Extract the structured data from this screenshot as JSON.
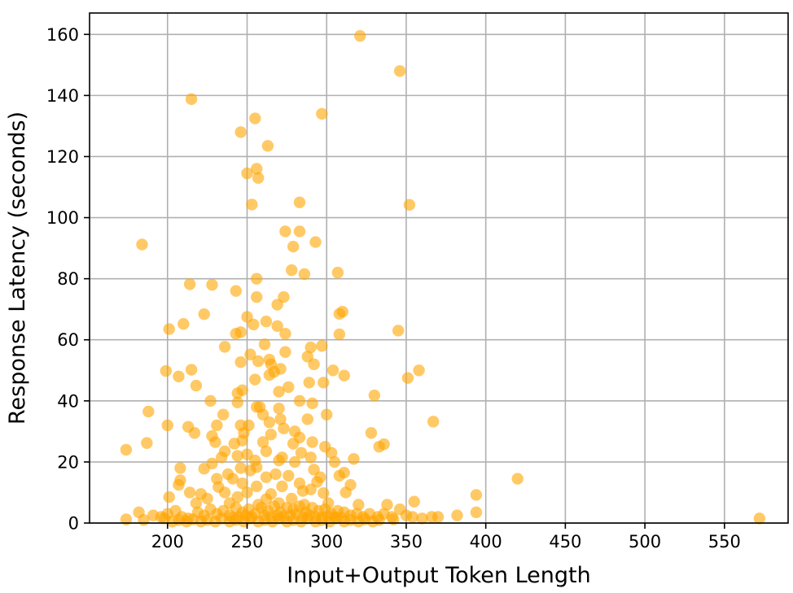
{
  "chart_data": {
    "type": "scatter",
    "title": "",
    "xlabel": "Input+Output Token Length",
    "ylabel": "Response Latency (seconds)",
    "xlim": [
      151,
      590
    ],
    "ylim": [
      0,
      167
    ],
    "xticks": [
      200,
      250,
      300,
      350,
      400,
      450,
      500,
      550
    ],
    "yticks": [
      0,
      20,
      40,
      60,
      80,
      100,
      120,
      140,
      160
    ],
    "grid": true,
    "marker_color": "#FFA500",
    "marker_alpha": 0.6,
    "points": [
      [
        321,
        159.5
      ],
      [
        346,
        148
      ],
      [
        215,
        138.8
      ],
      [
        297,
        134
      ],
      [
        255,
        132.5
      ],
      [
        246,
        128
      ],
      [
        263,
        123.5
      ],
      [
        256,
        116
      ],
      [
        250,
        114.5
      ],
      [
        257,
        113
      ],
      [
        283,
        105
      ],
      [
        253,
        104.3
      ],
      [
        352,
        104.2
      ],
      [
        184,
        91.2
      ],
      [
        274,
        95.5
      ],
      [
        283,
        95.5
      ],
      [
        293,
        92
      ],
      [
        279,
        90.5
      ],
      [
        278,
        82.8
      ],
      [
        286,
        81.5
      ],
      [
        307,
        82
      ],
      [
        214,
        78.2
      ],
      [
        228,
        78
      ],
      [
        256,
        80
      ],
      [
        243,
        76
      ],
      [
        256,
        74
      ],
      [
        273,
        74
      ],
      [
        269,
        71.5
      ],
      [
        310,
        69.2
      ],
      [
        308,
        68.5
      ],
      [
        250,
        67.5
      ],
      [
        223,
        68.4
      ],
      [
        262,
        66
      ],
      [
        269,
        64.5
      ],
      [
        210,
        65.2
      ],
      [
        254,
        65
      ],
      [
        201,
        63.5
      ],
      [
        243,
        62
      ],
      [
        246,
        62.5
      ],
      [
        274,
        62
      ],
      [
        308,
        61.8
      ],
      [
        345,
        63
      ],
      [
        261,
        58.5
      ],
      [
        236,
        57.7
      ],
      [
        274,
        56
      ],
      [
        290,
        57.5
      ],
      [
        297,
        58
      ],
      [
        252,
        55.2
      ],
      [
        288,
        54.5
      ],
      [
        257,
        53
      ],
      [
        246,
        52.7
      ],
      [
        264,
        53.5
      ],
      [
        265,
        52
      ],
      [
        267,
        49.5
      ],
      [
        271,
        50.5
      ],
      [
        292,
        52
      ],
      [
        304,
        50
      ],
      [
        199,
        49.8
      ],
      [
        215,
        50.2
      ],
      [
        207,
        48
      ],
      [
        264,
        48.5
      ],
      [
        351,
        47.5
      ],
      [
        358,
        50
      ],
      [
        311,
        48.3
      ],
      [
        255,
        47
      ],
      [
        289,
        46
      ],
      [
        298,
        46
      ],
      [
        218,
        45
      ],
      [
        276,
        44.5
      ],
      [
        247,
        43.5
      ],
      [
        244,
        42.5
      ],
      [
        270,
        43
      ],
      [
        330,
        41.8
      ],
      [
        227,
        40
      ],
      [
        244,
        39.5
      ],
      [
        283,
        40
      ],
      [
        291,
        39.2
      ],
      [
        256,
        38
      ],
      [
        258,
        38
      ],
      [
        270,
        37.5
      ],
      [
        300,
        35.5
      ],
      [
        188,
        36.5
      ],
      [
        235,
        35.5
      ],
      [
        260,
        35.5
      ],
      [
        288,
        34
      ],
      [
        264,
        33
      ],
      [
        271,
        34
      ],
      [
        367,
        33.2
      ],
      [
        200,
        32
      ],
      [
        213,
        31.5
      ],
      [
        231,
        32
      ],
      [
        246,
        32
      ],
      [
        251,
        32
      ],
      [
        273,
        31
      ],
      [
        280,
        30
      ],
      [
        217,
        29.5
      ],
      [
        248,
        29.5
      ],
      [
        265,
        29
      ],
      [
        283,
        28
      ],
      [
        328,
        29.5
      ],
      [
        187,
        26.2
      ],
      [
        228,
        28.5
      ],
      [
        230,
        26.5
      ],
      [
        247,
        27
      ],
      [
        242,
        26
      ],
      [
        260,
        26.5
      ],
      [
        279,
        26
      ],
      [
        291,
        26.5
      ],
      [
        299,
        25
      ],
      [
        336,
        25.8
      ],
      [
        333,
        25
      ],
      [
        236,
        23.5
      ],
      [
        262,
        23.5
      ],
      [
        284,
        23
      ],
      [
        303,
        23
      ],
      [
        174,
        24
      ],
      [
        244,
        22
      ],
      [
        250,
        22.5
      ],
      [
        272,
        21.5
      ],
      [
        290,
        21.5
      ],
      [
        317,
        21
      ],
      [
        234,
        21.5
      ],
      [
        255,
        20.5
      ],
      [
        270,
        20.5
      ],
      [
        280,
        20
      ],
      [
        305,
        20
      ],
      [
        228,
        19.5
      ],
      [
        208,
        18
      ],
      [
        223,
        17.8
      ],
      [
        246,
        18
      ],
      [
        256,
        18.3
      ],
      [
        292,
        17.5
      ],
      [
        311,
        16.5
      ],
      [
        238,
        16
      ],
      [
        252,
        17.2
      ],
      [
        268,
        16
      ],
      [
        308,
        15.5
      ],
      [
        420,
        14.5
      ],
      [
        231,
        14.5
      ],
      [
        241,
        14.5
      ],
      [
        262,
        15
      ],
      [
        276,
        15.5
      ],
      [
        296,
        15
      ],
      [
        208,
        14
      ],
      [
        247,
        13
      ],
      [
        283,
        13
      ],
      [
        294,
        13.5
      ],
      [
        315,
        12.5
      ],
      [
        207,
        12.5
      ],
      [
        232,
        11.8
      ],
      [
        256,
        12
      ],
      [
        272,
        12
      ],
      [
        290,
        11
      ],
      [
        214,
        10
      ],
      [
        221,
        9.5
      ],
      [
        236,
        10
      ],
      [
        250,
        10
      ],
      [
        265,
        9.5
      ],
      [
        285,
        10.5
      ],
      [
        298,
        9.8
      ],
      [
        312,
        10
      ],
      [
        201,
        8.5
      ],
      [
        225,
        8
      ],
      [
        244,
        8.5
      ],
      [
        262,
        7.8
      ],
      [
        278,
        8
      ],
      [
        394,
        9.2
      ],
      [
        355,
        7
      ],
      [
        338,
        6
      ],
      [
        218,
        6.5
      ],
      [
        239,
        6.5
      ],
      [
        257,
        6
      ],
      [
        270,
        6.5
      ],
      [
        286,
        6
      ],
      [
        301,
        6.5
      ],
      [
        320,
        6
      ],
      [
        182,
        3.5
      ],
      [
        191,
        2.5
      ],
      [
        196,
        2
      ],
      [
        200,
        3
      ],
      [
        205,
        4
      ],
      [
        209,
        2
      ],
      [
        213,
        1.5
      ],
      [
        219,
        3.5
      ],
      [
        223,
        2.5
      ],
      [
        227,
        4.5
      ],
      [
        231,
        3
      ],
      [
        235,
        4
      ],
      [
        239,
        2.5
      ],
      [
        243,
        5
      ],
      [
        247,
        3.5
      ],
      [
        251,
        4.5
      ],
      [
        255,
        3
      ],
      [
        259,
        5
      ],
      [
        263,
        4
      ],
      [
        267,
        5.5
      ],
      [
        271,
        3.5
      ],
      [
        275,
        5
      ],
      [
        279,
        4.5
      ],
      [
        283,
        5.5
      ],
      [
        287,
        3.5
      ],
      [
        291,
        5
      ],
      [
        295,
        4
      ],
      [
        299,
        4.5
      ],
      [
        303,
        3
      ],
      [
        307,
        4
      ],
      [
        311,
        3.5
      ],
      [
        315,
        2.5
      ],
      [
        319,
        3
      ],
      [
        323,
        2
      ],
      [
        327,
        3
      ],
      [
        332,
        2
      ],
      [
        336,
        3
      ],
      [
        341,
        2
      ],
      [
        346,
        4.5
      ],
      [
        350,
        2.5
      ],
      [
        354,
        2
      ],
      [
        360,
        1.5
      ],
      [
        366,
        2
      ],
      [
        370,
        2
      ],
      [
        382,
        2.5
      ],
      [
        394,
        3.5
      ],
      [
        572,
        1.5
      ],
      [
        174,
        1.2
      ],
      [
        185,
        1
      ],
      [
        198,
        1.5
      ],
      [
        207,
        1
      ],
      [
        216,
        1.2
      ],
      [
        225,
        1
      ],
      [
        234,
        1.5
      ],
      [
        243,
        1
      ],
      [
        252,
        1.5
      ],
      [
        261,
        1
      ],
      [
        270,
        1.5
      ],
      [
        279,
        1
      ],
      [
        288,
        1.5
      ],
      [
        297,
        1
      ],
      [
        306,
        1.5
      ],
      [
        315,
        1
      ],
      [
        324,
        1.2
      ],
      [
        333,
        1
      ],
      [
        342,
        1.2
      ],
      [
        203,
        0.5
      ],
      [
        212,
        0.5
      ],
      [
        221,
        0.5
      ],
      [
        230,
        0.5
      ],
      [
        239,
        0.5
      ],
      [
        248,
        0.5
      ],
      [
        257,
        0.5
      ],
      [
        266,
        0.5
      ],
      [
        275,
        0.5
      ],
      [
        284,
        0.5
      ],
      [
        293,
        0.5
      ],
      [
        302,
        0.5
      ],
      [
        311,
        0.5
      ],
      [
        320,
        0.5
      ],
      [
        329,
        0.5
      ],
      [
        277,
        2.5
      ],
      [
        281,
        3
      ],
      [
        273,
        2
      ],
      [
        269,
        2.5
      ],
      [
        285,
        2
      ],
      [
        289,
        2.5
      ],
      [
        265,
        2
      ],
      [
        293,
        2
      ],
      [
        261,
        2.5
      ],
      [
        297,
        1.8
      ],
      [
        253,
        2
      ],
      [
        301,
        2.2
      ],
      [
        245,
        2
      ],
      [
        249,
        2.5
      ],
      [
        305,
        2
      ],
      [
        241,
        1.8
      ],
      [
        309,
        1.8
      ]
    ]
  }
}
